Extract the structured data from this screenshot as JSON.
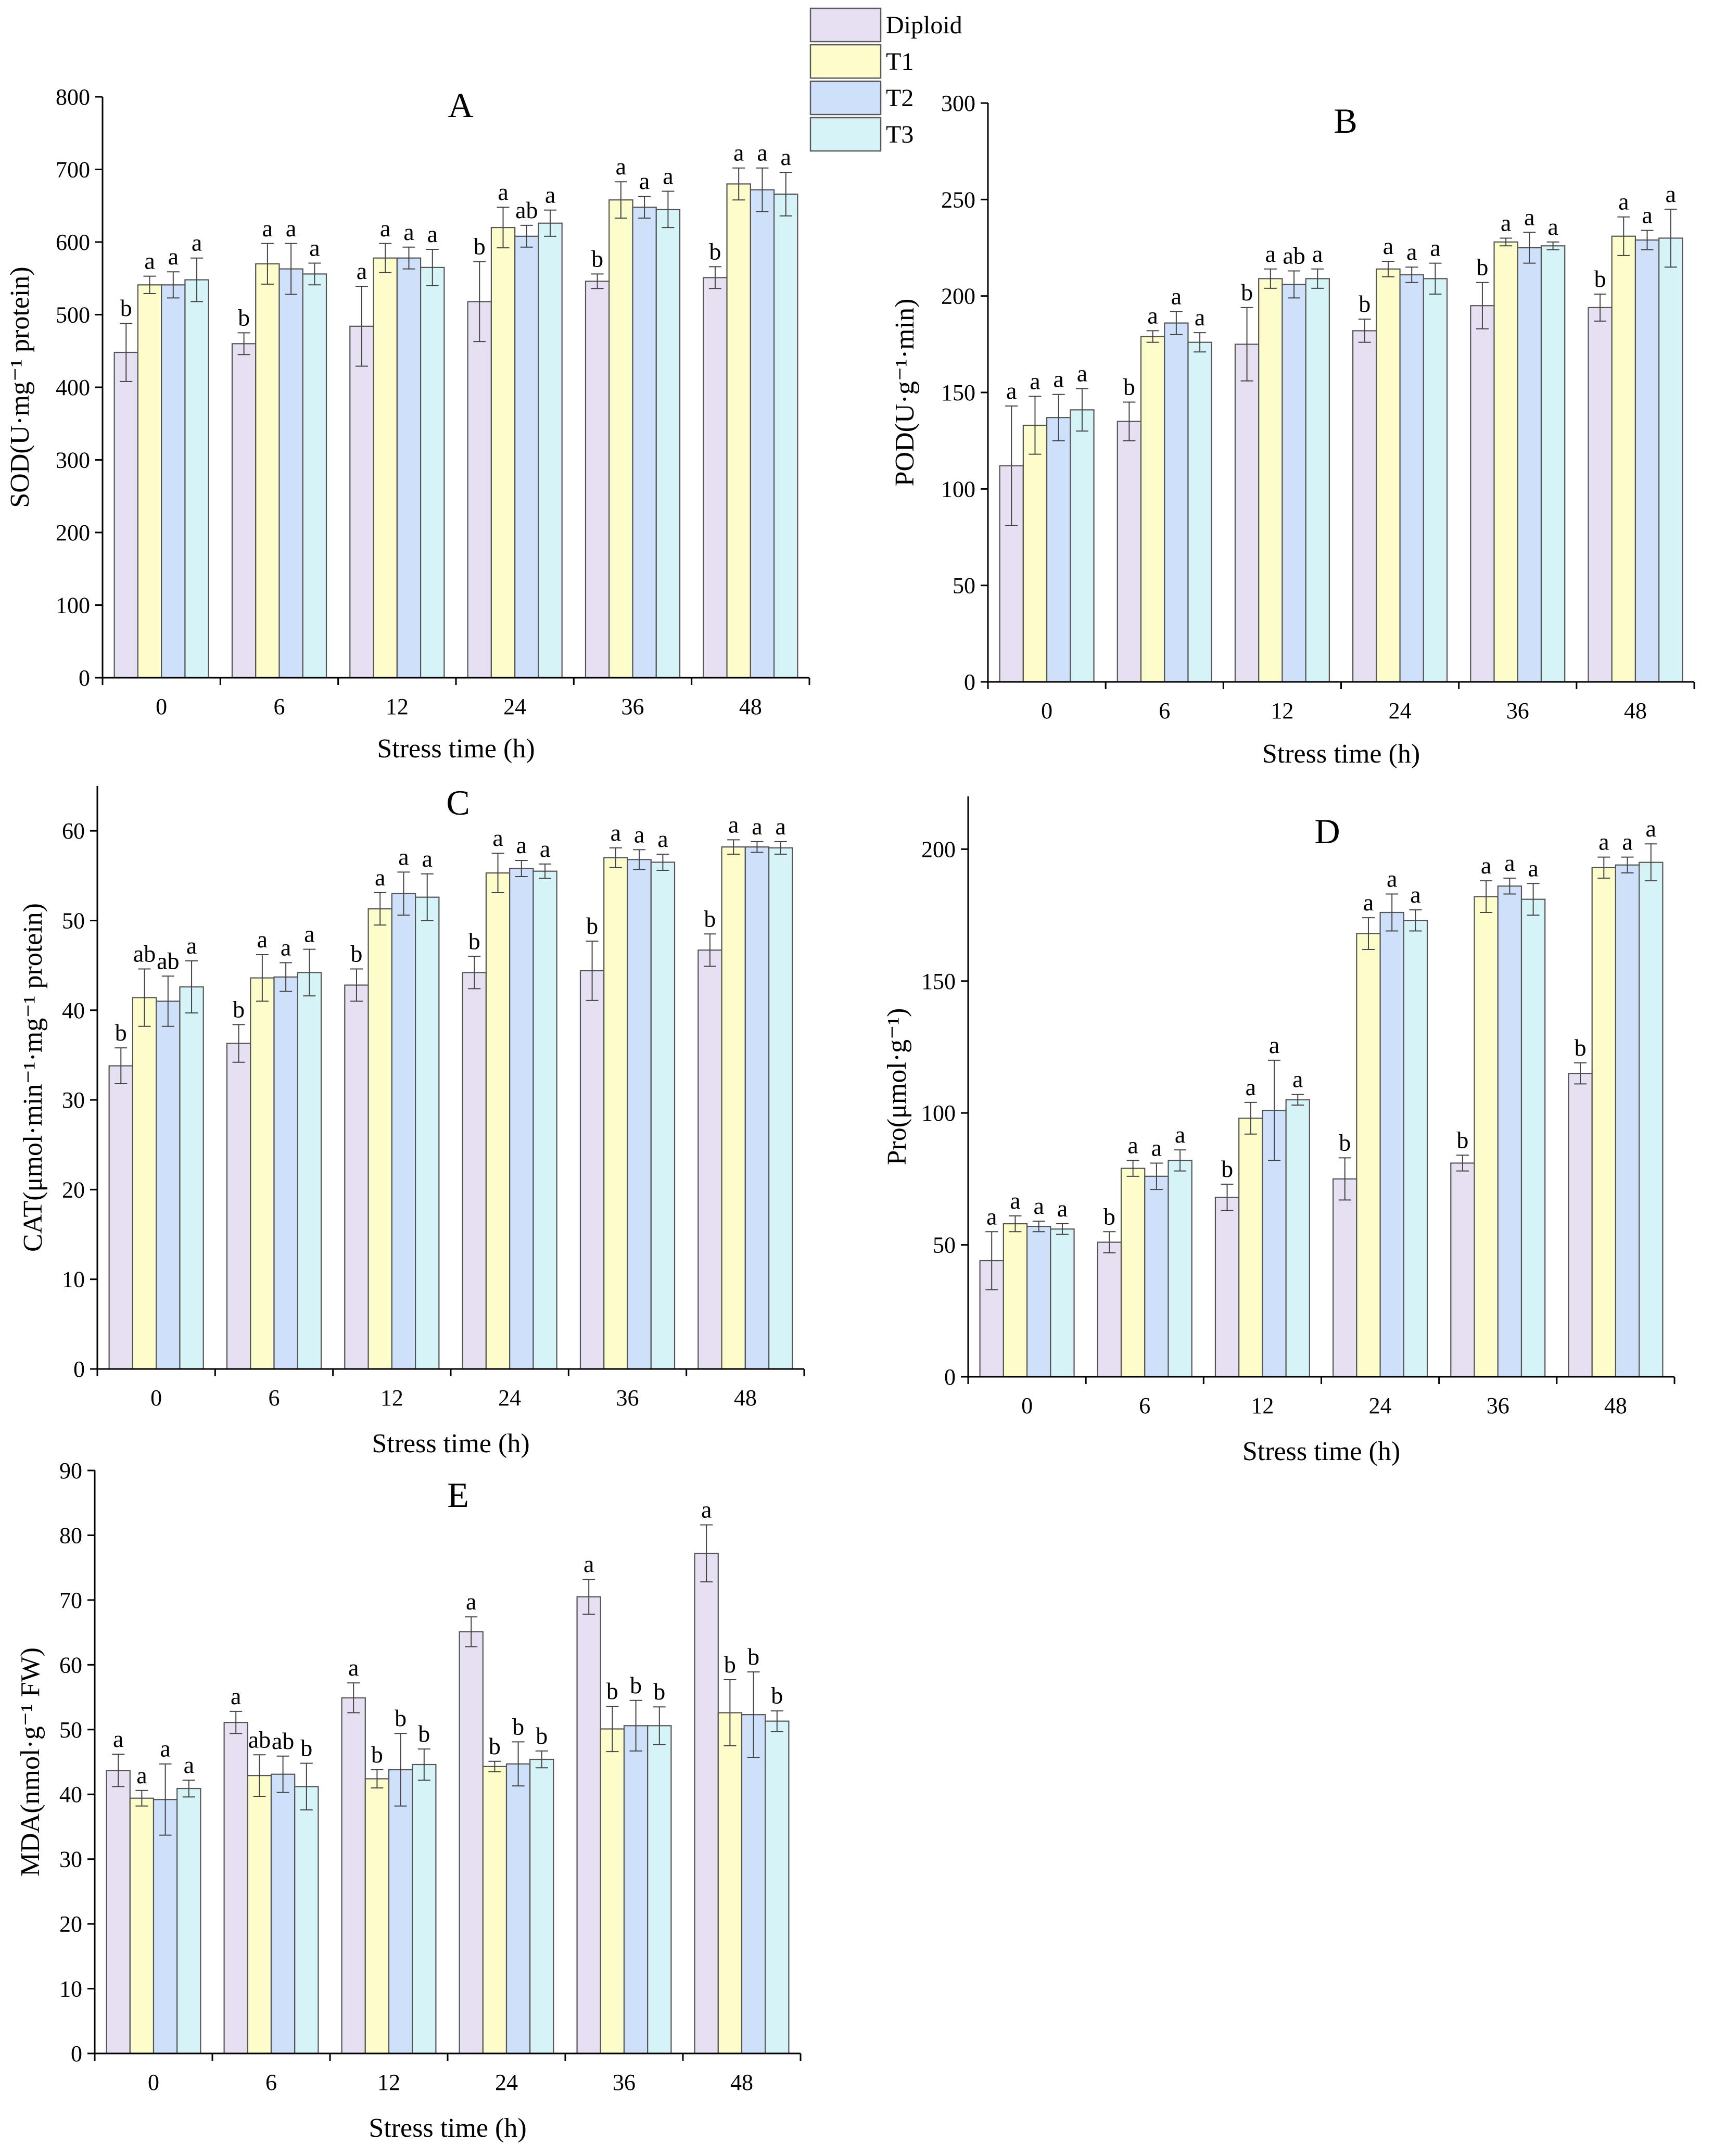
{
  "figure": {
    "legend": [
      {
        "name": "Diploid",
        "color": "#E6E0F2"
      },
      {
        "name": "T1",
        "color": "#FCFDCB"
      },
      {
        "name": "T2",
        "color": "#CFE0FB"
      },
      {
        "name": "T3",
        "color": "#D6F3F8"
      }
    ]
  },
  "chart_data": [
    {
      "id": "A",
      "panel_label": "A",
      "type": "bar",
      "ylabel": "SOD(U·mg⁻¹ protein)",
      "xlabel": "Stress time (h)",
      "categories": [
        "0",
        "6",
        "12",
        "24",
        "36",
        "48"
      ],
      "ylim": [
        0,
        800
      ],
      "yticks": [
        "0",
        "100",
        "200",
        "300",
        "400",
        "500",
        "600",
        "700",
        "800"
      ],
      "series": [
        {
          "name": "Diploid",
          "values": [
            448,
            460,
            484,
            518,
            546,
            551
          ],
          "errors": [
            40,
            15,
            55,
            55,
            10,
            15
          ],
          "letters": [
            "b",
            "b",
            "a",
            "b",
            "b",
            "b"
          ]
        },
        {
          "name": "T1",
          "values": [
            541,
            570,
            578,
            620,
            658,
            680
          ],
          "errors": [
            12,
            28,
            20,
            28,
            25,
            22
          ],
          "letters": [
            "a",
            "a",
            "a",
            "a",
            "a",
            "a"
          ]
        },
        {
          "name": "T2",
          "values": [
            541,
            563,
            578,
            608,
            648,
            672
          ],
          "errors": [
            18,
            35,
            15,
            15,
            15,
            30
          ],
          "letters": [
            "a",
            "a",
            "a",
            "ab",
            "a",
            "a"
          ]
        },
        {
          "name": "T3",
          "values": [
            548,
            556,
            565,
            626,
            645,
            666
          ],
          "errors": [
            30,
            15,
            25,
            18,
            25,
            30
          ],
          "letters": [
            "a",
            "a",
            "a",
            "a",
            "a",
            "a"
          ]
        }
      ]
    },
    {
      "id": "B",
      "panel_label": "B",
      "type": "bar",
      "ylabel": "POD(U·g⁻¹·min)",
      "xlabel": "Stress time (h)",
      "categories": [
        "0",
        "6",
        "12",
        "24",
        "36",
        "48"
      ],
      "ylim": [
        0,
        300
      ],
      "yticks": [
        "0",
        "50",
        "100",
        "150",
        "200",
        "250",
        "300"
      ],
      "series": [
        {
          "name": "Diploid",
          "values": [
            112,
            135,
            175,
            182,
            195,
            194
          ],
          "errors": [
            31,
            10,
            19,
            6,
            12,
            7
          ],
          "letters": [
            "a",
            "b",
            "b",
            "b",
            "b",
            "b"
          ]
        },
        {
          "name": "T1",
          "values": [
            133,
            179,
            209,
            214,
            228,
            231
          ],
          "errors": [
            15,
            3,
            5,
            4,
            2,
            10
          ],
          "letters": [
            "a",
            "a",
            "a",
            "a",
            "a",
            "a"
          ]
        },
        {
          "name": "T2",
          "values": [
            137,
            186,
            206,
            211,
            225,
            229
          ],
          "errors": [
            12,
            6,
            7,
            4,
            8,
            5
          ],
          "letters": [
            "a",
            "a",
            "ab",
            "a",
            "a",
            "a"
          ]
        },
        {
          "name": "T3",
          "values": [
            141,
            176,
            209,
            209,
            226,
            230
          ],
          "errors": [
            11,
            5,
            5,
            8,
            2,
            15
          ],
          "letters": [
            "a",
            "a",
            "a",
            "a",
            "a",
            "a"
          ]
        }
      ]
    },
    {
      "id": "C",
      "panel_label": "C",
      "type": "bar",
      "ylabel": "CAT(μmol·min⁻¹·mg⁻¹ protein)",
      "xlabel": "Stress time (h)",
      "categories": [
        "0",
        "6",
        "12",
        "24",
        "36",
        "48"
      ],
      "ylim": [
        0,
        65
      ],
      "yticks": [
        "0",
        "10",
        "20",
        "30",
        "40",
        "50",
        "60"
      ],
      "ytick_values": [
        0,
        10,
        20,
        30,
        40,
        50,
        60
      ],
      "series": [
        {
          "name": "Diploid",
          "values": [
            33.8,
            36.3,
            42.8,
            44.2,
            44.4,
            46.7
          ],
          "errors": [
            2.0,
            2.1,
            1.8,
            1.8,
            3.3,
            1.8
          ],
          "letters": [
            "b",
            "b",
            "b",
            "b",
            "b",
            "b"
          ]
        },
        {
          "name": "T1",
          "values": [
            41.4,
            43.6,
            51.3,
            55.3,
            57.0,
            58.2
          ],
          "errors": [
            3.2,
            2.6,
            1.8,
            2.2,
            1.1,
            0.8
          ],
          "letters": [
            "ab",
            "a",
            "a",
            "a",
            "a",
            "a"
          ]
        },
        {
          "name": "T2",
          "values": [
            41.0,
            43.7,
            53.0,
            55.8,
            56.8,
            58.2
          ],
          "errors": [
            2.8,
            1.6,
            2.4,
            0.9,
            1.1,
            0.6
          ],
          "letters": [
            "ab",
            "a",
            "a",
            "a",
            "a",
            "a"
          ]
        },
        {
          "name": "T3",
          "values": [
            42.6,
            44.2,
            52.6,
            55.5,
            56.5,
            58.1
          ],
          "errors": [
            2.9,
            2.6,
            2.6,
            0.8,
            0.9,
            0.7
          ],
          "letters": [
            "a",
            "a",
            "a",
            "a",
            "a",
            "a"
          ]
        }
      ]
    },
    {
      "id": "D",
      "panel_label": "D",
      "type": "bar",
      "ylabel": "Pro(μmol·g⁻¹)",
      "xlabel": "Stress time (h)",
      "categories": [
        "0",
        "6",
        "12",
        "24",
        "36",
        "48"
      ],
      "ylim": [
        0,
        220
      ],
      "yticks": [
        "0",
        "50",
        "100",
        "150",
        "200"
      ],
      "ytick_values": [
        0,
        50,
        100,
        150,
        200
      ],
      "series": [
        {
          "name": "Diploid",
          "values": [
            44,
            51,
            68,
            75,
            81,
            115
          ],
          "errors": [
            11,
            4,
            5,
            8,
            3,
            4
          ],
          "letters": [
            "a",
            "b",
            "b",
            "b",
            "b",
            "b"
          ]
        },
        {
          "name": "T1",
          "values": [
            58,
            79,
            98,
            168,
            182,
            193
          ],
          "errors": [
            3,
            3,
            6,
            6,
            6,
            4
          ],
          "letters": [
            "a",
            "a",
            "a",
            "a",
            "a",
            "a"
          ]
        },
        {
          "name": "T2",
          "values": [
            57,
            76,
            101,
            176,
            186,
            194
          ],
          "errors": [
            2,
            5,
            19,
            7,
            3,
            3
          ],
          "letters": [
            "a",
            "a",
            "a",
            "a",
            "a",
            "a"
          ]
        },
        {
          "name": "T3",
          "values": [
            56,
            82,
            105,
            173,
            181,
            195
          ],
          "errors": [
            2,
            4,
            2,
            4,
            6,
            7
          ],
          "letters": [
            "a",
            "a",
            "a",
            "a",
            "a",
            "a"
          ]
        }
      ]
    },
    {
      "id": "E",
      "panel_label": "E",
      "type": "bar",
      "ylabel": "MDA(nmol·g⁻¹ FW)",
      "xlabel": "Stress time (h)",
      "categories": [
        "0",
        "6",
        "12",
        "24",
        "36",
        "48"
      ],
      "ylim": [
        0,
        90
      ],
      "yticks": [
        "0",
        "10",
        "20",
        "30",
        "40",
        "50",
        "60",
        "70",
        "80",
        "90"
      ],
      "series": [
        {
          "name": "Diploid",
          "values": [
            43.7,
            51.1,
            54.9,
            65.1,
            70.5,
            77.2
          ],
          "errors": [
            2.5,
            1.7,
            2.3,
            2.3,
            2.7,
            4.4
          ],
          "letters": [
            "a",
            "a",
            "a",
            "a",
            "a",
            "a"
          ]
        },
        {
          "name": "T1",
          "values": [
            39.4,
            42.9,
            42.4,
            44.3,
            50.1,
            52.6
          ],
          "errors": [
            1.2,
            3.2,
            1.4,
            0.8,
            3.5,
            5.1
          ],
          "letters": [
            "a",
            "ab",
            "b",
            "b",
            "b",
            "b"
          ]
        },
        {
          "name": "T2",
          "values": [
            39.2,
            43.1,
            43.8,
            44.7,
            50.6,
            52.3
          ],
          "errors": [
            5.5,
            2.8,
            5.6,
            3.4,
            3.9,
            6.6
          ],
          "letters": [
            "a",
            "ab",
            "b",
            "b",
            "b",
            "b"
          ]
        },
        {
          "name": "T3",
          "values": [
            40.9,
            41.2,
            44.6,
            45.4,
            50.6,
            51.3
          ],
          "errors": [
            1.3,
            3.6,
            2.4,
            1.3,
            2.9,
            1.6
          ],
          "letters": [
            "a",
            "b",
            "b",
            "b",
            "b",
            "b"
          ]
        }
      ]
    }
  ]
}
